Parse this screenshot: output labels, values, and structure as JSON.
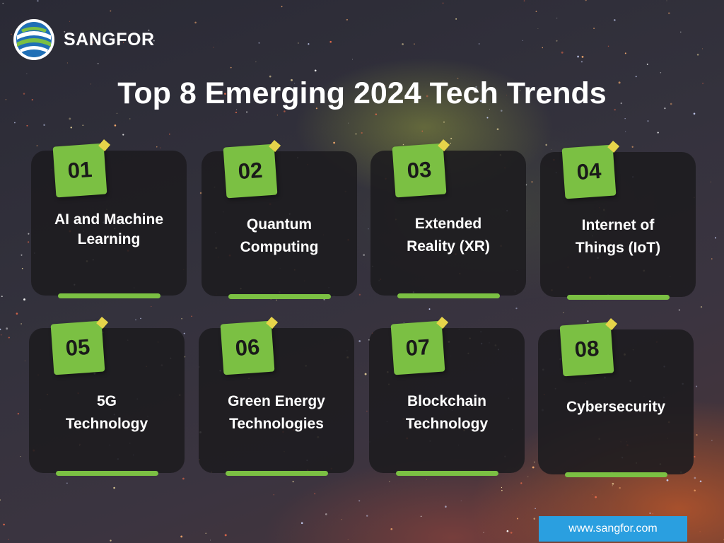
{
  "brand": {
    "name": "SANGFOR"
  },
  "title": "Top 8 Emerging 2024 Tech Trends",
  "cards": [
    {
      "number": "01",
      "label_line1": "AI and Machine",
      "label_line2": "Learning"
    },
    {
      "number": "02",
      "label_line1": "Quantum",
      "label_line2": "Computing"
    },
    {
      "number": "03",
      "label_line1": "Extended",
      "label_line2": "Reality (XR)"
    },
    {
      "number": "04",
      "label_line1": "Internet of",
      "label_line2": "Things (IoT)"
    },
    {
      "number": "05",
      "label_line1": "5G",
      "label_line2": "Technology"
    },
    {
      "number": "06",
      "label_line1": "Green Energy",
      "label_line2": "Technologies"
    },
    {
      "number": "07",
      "label_line1": "Blockchain",
      "label_line2": "Technology"
    },
    {
      "number": "08",
      "label_line1": "Cybersecurity",
      "label_line2": ""
    }
  ],
  "footer": {
    "url": "www.sangfor.com"
  },
  "colors": {
    "accent_green": "#7bc043",
    "url_blue": "#2a9fe0",
    "card_bg": "#1c1b1f"
  }
}
